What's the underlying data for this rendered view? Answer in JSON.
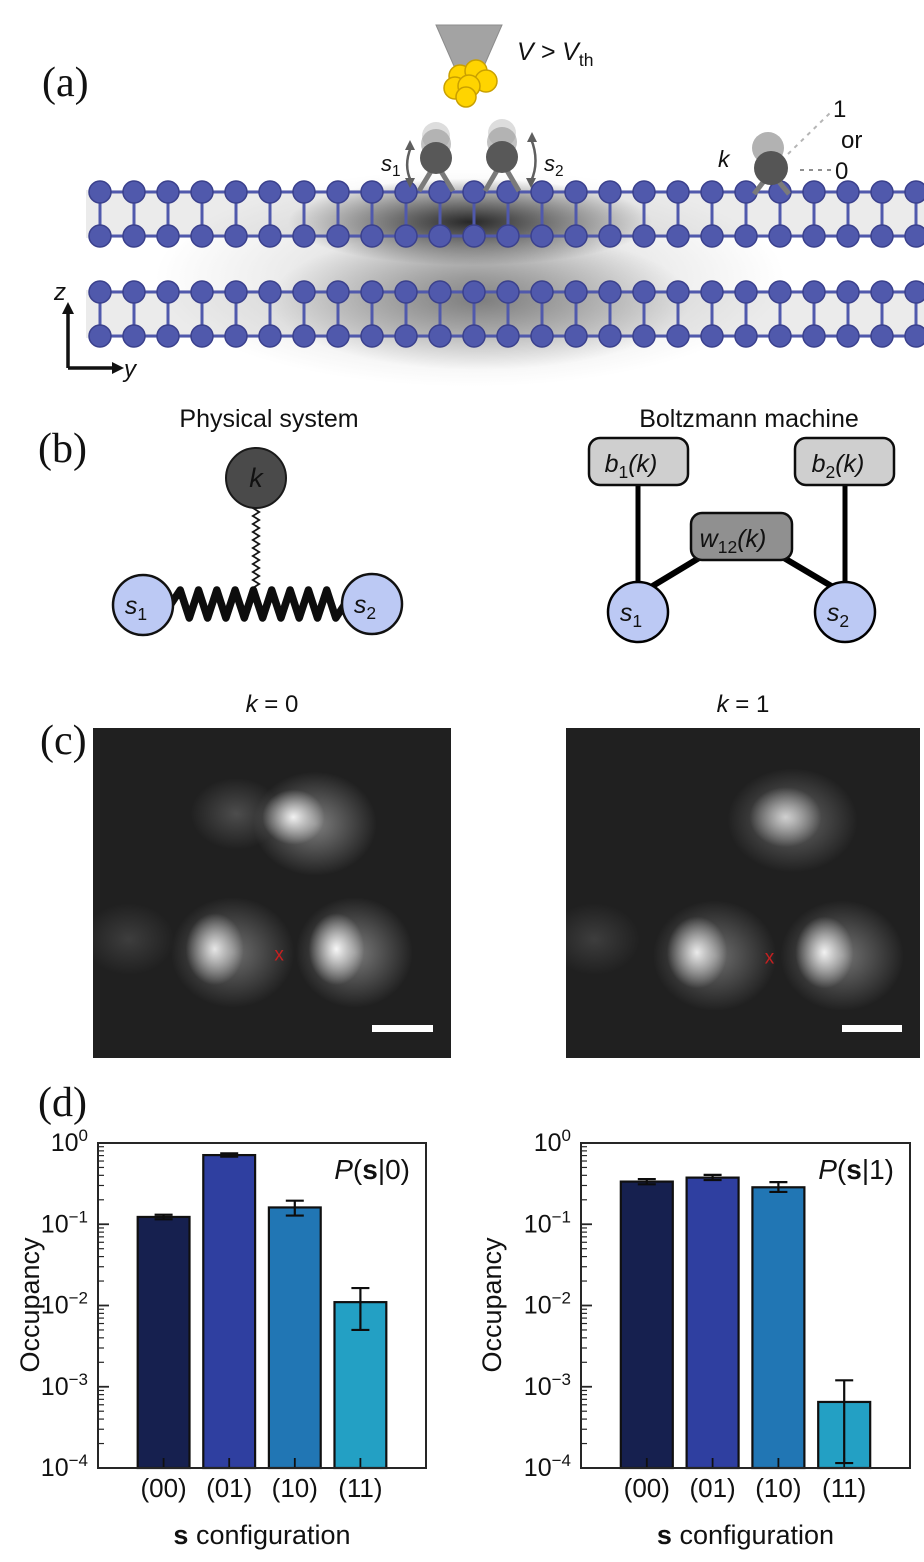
{
  "figure": {
    "panel_labels": {
      "a": "(a)",
      "b": "(b)",
      "c": "(c)",
      "d": "(d)"
    },
    "panel_a": {
      "voltage": {
        "base": "V > V",
        "sub": "th"
      },
      "s1": {
        "base": "s",
        "sub": "1"
      },
      "s2": {
        "base": "s",
        "sub": "2"
      },
      "k": "k",
      "state_one": "1",
      "or_label": "or",
      "state_zero": "0",
      "axis_z": "z",
      "axis_y": "y"
    },
    "panel_b": {
      "left_title": "Physical system",
      "right_title": "Boltzmann machine",
      "k": "k",
      "s1": {
        "base": "s",
        "sub": "1"
      },
      "s2": {
        "base": "s",
        "sub": "2"
      },
      "b1": {
        "base": "b",
        "sub": "1",
        "paren": "(k)"
      },
      "b2": {
        "base": "b",
        "sub": "2",
        "paren": "(k)"
      },
      "w12": {
        "base": "w",
        "sub": "12",
        "paren": "(k)"
      }
    },
    "panel_c": {
      "left_title": {
        "italic": "k",
        "rest": " = 0"
      },
      "right_title": {
        "italic": "k",
        "rest": " = 1"
      }
    }
  },
  "chart_data": [
    {
      "type": "bar",
      "yscale": "log",
      "ylim": [
        0.0001,
        1
      ],
      "title_annotation": {
        "italic": "P",
        "open": "(",
        "bold": "s",
        "rest": "|0)"
      },
      "categories": [
        "(00)",
        "(01)",
        "(10)",
        "(11)"
      ],
      "values": [
        0.123,
        0.71,
        0.161,
        0.011
      ],
      "error_low": [
        0.115,
        0.68,
        0.128,
        0.005
      ],
      "error_high": [
        0.131,
        0.745,
        0.195,
        0.0164
      ],
      "bar_colors": [
        "#16204f",
        "#2f3fa0",
        "#2176b4",
        "#23a0c4"
      ],
      "xlabel": {
        "bold": "s",
        "rest": " configuration"
      },
      "ylabel": "Occupancy",
      "ytick_base": "10",
      "ytick_exponents": [
        "0",
        "−1",
        "−2",
        "−3",
        "−4"
      ],
      "legend": null,
      "grid": false
    },
    {
      "type": "bar",
      "yscale": "log",
      "ylim": [
        0.0001,
        1
      ],
      "title_annotation": {
        "italic": "P",
        "open": "(",
        "bold": "s",
        "rest": "|1)"
      },
      "categories": [
        "(00)",
        "(01)",
        "(10)",
        "(11)"
      ],
      "values": [
        0.335,
        0.375,
        0.285,
        0.00065
      ],
      "error_low": [
        0.31,
        0.35,
        0.25,
        0.000115
      ],
      "error_high": [
        0.36,
        0.405,
        0.33,
        0.0012
      ],
      "bar_colors": [
        "#16204f",
        "#2f3fa0",
        "#2176b4",
        "#23a0c4"
      ],
      "xlabel": {
        "bold": "s",
        "rest": " configuration"
      },
      "ylabel": "Occupancy",
      "ytick_base": "10",
      "ytick_exponents": [
        "0",
        "−1",
        "−2",
        "−3",
        "−4"
      ],
      "legend": null,
      "grid": false
    }
  ],
  "colors": {
    "lattice_fill": "#5059ac",
    "lattice_stroke": "#3a408c",
    "bar_edge": "#101010",
    "spine": "#262626",
    "red_marker": "#c42020",
    "tip_gray": "#a3a3a3",
    "gold": "#ffd400",
    "gold_stroke": "#c9a000",
    "node_blue": "#bcc9f4",
    "box_light": "#cfcfcf",
    "box_mid": "#909090",
    "dark_node": "#4a4a4a"
  }
}
